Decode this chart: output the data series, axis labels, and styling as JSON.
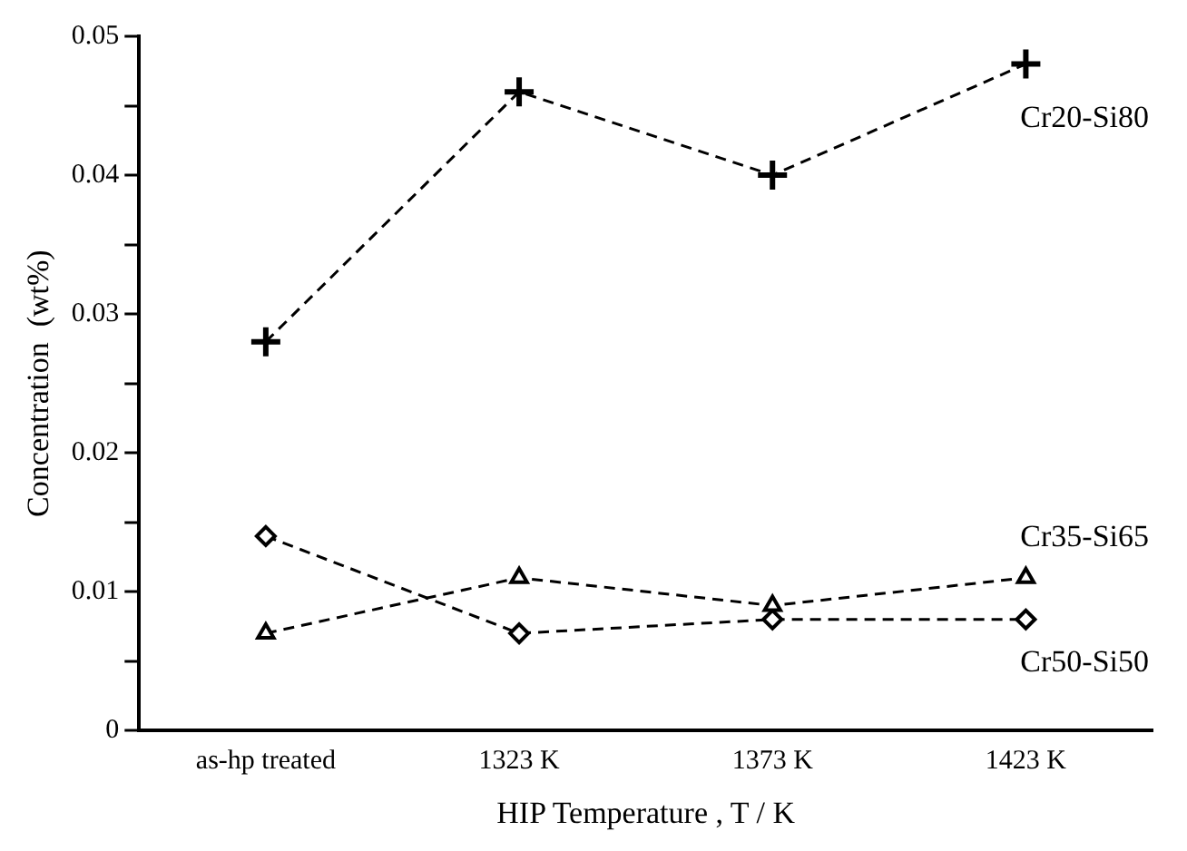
{
  "chart_data": {
    "type": "line",
    "xlabel": "HIP Temperature , T / K",
    "ylabel": "Concentration  (wt%)",
    "categories": [
      "as-hp treated",
      "1323 K",
      "1373 K",
      "1423 K"
    ],
    "ylim": [
      0,
      0.05
    ],
    "yticks": [
      0,
      {
        "value": 0.005,
        "label": null
      },
      0.01,
      {
        "value": 0.015,
        "label": null
      },
      0.02,
      {
        "value": 0.025,
        "label": null
      },
      0.03,
      {
        "value": 0.035,
        "label": null
      },
      0.04,
      {
        "value": 0.045,
        "label": null
      },
      0.05
    ],
    "grid": false,
    "legend": false,
    "line_style": "dashed",
    "series": [
      {
        "name": "Cr20-Si80",
        "color": "#000000",
        "marker": "cross",
        "values": [
          0.028,
          0.046,
          0.04,
          0.048
        ]
      },
      {
        "name": "Cr35-Si65",
        "color": "#000000",
        "marker": "triangle",
        "values": [
          0.007,
          0.011,
          0.009,
          0.011
        ]
      },
      {
        "name": "Cr50-Si50",
        "color": "#000000",
        "marker": "diamond",
        "values": [
          0.014,
          0.007,
          0.008,
          0.008
        ]
      }
    ]
  }
}
